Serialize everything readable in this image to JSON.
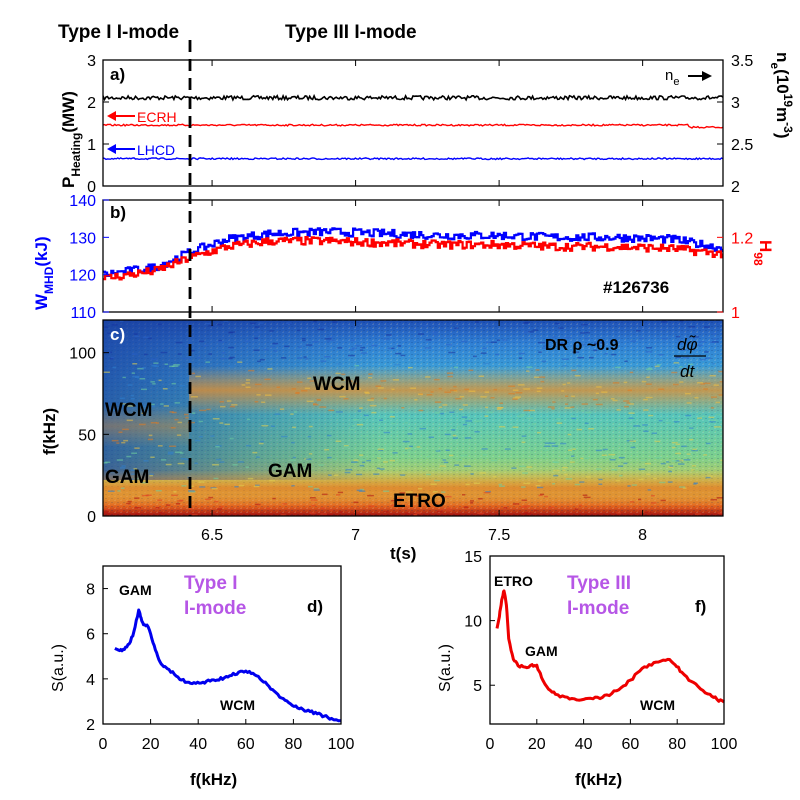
{
  "figure": {
    "top_labels": {
      "left": "Type I I-mode",
      "right": "Type III I-mode"
    },
    "time_axis": {
      "label": "t(s)",
      "ticks": [
        "6.5",
        "7",
        "7.5",
        "8"
      ]
    }
  },
  "chart_data": [
    {
      "id": "a",
      "type": "line",
      "panel_label": "a)",
      "x": {
        "min": 6.12,
        "max": 8.28
      },
      "left_axis": {
        "label_main": "P",
        "label_sub": "Heating",
        "label_unit": "(MW)",
        "ylim": [
          0,
          3
        ],
        "ticks": [
          "0",
          "1",
          "2",
          "3"
        ]
      },
      "right_axis": {
        "label_main": "n",
        "label_sub": "e",
        "label_unit_a": "(10",
        "label_unit_b": "19",
        "label_unit_c": "m",
        "label_unit_d": "-3",
        "label_unit_e": ")",
        "ylim": [
          2,
          3.5
        ],
        "ticks": [
          "2",
          "2.5",
          "3",
          "3.5"
        ]
      },
      "series": [
        {
          "name": "n_e",
          "axis": "right",
          "color": "#000000",
          "value": 3.05,
          "end_value": 3.06
        },
        {
          "name": "ECRH",
          "axis": "left",
          "color": "#ff0000",
          "value": 1.45,
          "drop_at": 8.16,
          "end_value": 1.4
        },
        {
          "name": "LHCD",
          "axis": "left",
          "color": "#0000ff",
          "value": 0.65,
          "end_value": 0.65
        }
      ],
      "annotations": {
        "ecrh": "ECRH",
        "lhcd": "LHCD",
        "ne_main": "n",
        "ne_sub": "e"
      }
    },
    {
      "id": "b",
      "type": "line",
      "panel_label": "b)",
      "x": {
        "min": 6.12,
        "max": 8.28
      },
      "left_axis": {
        "label_main": "W",
        "label_sub": "MHD",
        "label_unit": "(kJ)",
        "ylim": [
          110,
          140
        ],
        "ticks": [
          "110",
          "120",
          "130",
          "140"
        ],
        "color": "#0000ff"
      },
      "right_axis": {
        "label_main": "H",
        "label_sub": "98",
        "ylim": [
          1.0,
          1.3
        ],
        "ticks": [
          "1",
          "1.2"
        ],
        "color": "#ff0000"
      },
      "series": [
        {
          "name": "W_MHD",
          "axis": "left",
          "color": "#0000ff",
          "points": [
            [
              6.12,
              120
            ],
            [
              6.3,
              122
            ],
            [
              6.42,
              126
            ],
            [
              6.55,
              129.5
            ],
            [
              6.7,
              131
            ],
            [
              6.9,
              131.5
            ],
            [
              7.1,
              131
            ],
            [
              7.3,
              130.5
            ],
            [
              7.5,
              130.5
            ],
            [
              7.7,
              130
            ],
            [
              7.9,
              130
            ],
            [
              8.1,
              129.5
            ],
            [
              8.28,
              127
            ]
          ]
        },
        {
          "name": "H98",
          "axis": "right",
          "color": "#ff0000",
          "points": [
            [
              6.12,
              1.09
            ],
            [
              6.3,
              1.11
            ],
            [
              6.42,
              1.145
            ],
            [
              6.55,
              1.175
            ],
            [
              6.7,
              1.19
            ],
            [
              6.9,
              1.19
            ],
            [
              7.1,
              1.185
            ],
            [
              7.3,
              1.18
            ],
            [
              7.5,
              1.18
            ],
            [
              7.7,
              1.175
            ],
            [
              7.9,
              1.175
            ],
            [
              8.1,
              1.17
            ],
            [
              8.28,
              1.155
            ]
          ]
        }
      ],
      "annotations": {
        "shot": "#126736"
      }
    },
    {
      "id": "c",
      "type": "heatmap",
      "panel_label": "c)",
      "x": {
        "min": 6.12,
        "max": 8.28
      },
      "ylabel": "f(kHz)",
      "ylim": [
        0,
        120
      ],
      "yticks": [
        "0",
        "50",
        "100"
      ],
      "annotations": {
        "wcm_left": "WCM",
        "gam_left": "GAM",
        "wcm_right": "WCM",
        "gam_right": "GAM",
        "etro": "ETRO",
        "diag": "DR ρ ~0.9",
        "quantity_num": "dφ̃",
        "quantity_den": "dt"
      }
    },
    {
      "id": "d",
      "type": "line",
      "panel_label": "d)",
      "title_line1": "Type I",
      "title_line2": "I-mode",
      "xlabel": "f(kHz)",
      "ylabel": "S(a.u.)",
      "xlim": [
        0,
        100
      ],
      "ylim": [
        2,
        9
      ],
      "xticks": [
        "0",
        "20",
        "40",
        "60",
        "80",
        "100"
      ],
      "yticks": [
        "2",
        "4",
        "6",
        "8"
      ],
      "series": [
        {
          "name": "Type I spectrum",
          "color": "#0000ee",
          "points": [
            [
              5,
              5.35
            ],
            [
              7,
              5.25
            ],
            [
              9,
              5.3
            ],
            [
              11,
              5.55
            ],
            [
              13,
              6.1
            ],
            [
              15,
              7.05
            ],
            [
              16,
              6.7
            ],
            [
              17,
              6.4
            ],
            [
              19,
              6.3
            ],
            [
              21,
              5.6
            ],
            [
              23,
              5.0
            ],
            [
              25,
              4.6
            ],
            [
              27,
              4.45
            ],
            [
              30,
              4.2
            ],
            [
              33,
              3.95
            ],
            [
              36,
              3.85
            ],
            [
              39,
              3.8
            ],
            [
              42,
              3.85
            ],
            [
              45,
              3.9
            ],
            [
              48,
              3.95
            ],
            [
              51,
              4.05
            ],
            [
              54,
              4.15
            ],
            [
              57,
              4.3
            ],
            [
              60,
              4.35
            ],
            [
              63,
              4.25
            ],
            [
              66,
              4.0
            ],
            [
              69,
              3.75
            ],
            [
              72,
              3.45
            ],
            [
              75,
              3.15
            ],
            [
              78,
              2.95
            ],
            [
              81,
              2.8
            ],
            [
              84,
              2.65
            ],
            [
              87,
              2.55
            ],
            [
              90,
              2.45
            ],
            [
              93,
              2.35
            ],
            [
              96,
              2.25
            ],
            [
              100,
              2.15
            ]
          ]
        }
      ],
      "annotations": {
        "gam": "GAM",
        "wcm": "WCM"
      }
    },
    {
      "id": "f",
      "type": "line",
      "panel_label": "f)",
      "title_line1": "Type III",
      "title_line2": "I-mode",
      "xlabel": "f(kHz)",
      "ylabel": "S(a.u.)",
      "xlim": [
        0,
        100
      ],
      "ylim": [
        2,
        15
      ],
      "xticks": [
        "0",
        "20",
        "40",
        "60",
        "80",
        "100"
      ],
      "yticks": [
        "5",
        "10",
        "15"
      ],
      "series": [
        {
          "name": "Type III spectrum",
          "color": "#ee0000",
          "points": [
            [
              3,
              9.4
            ],
            [
              4,
              10.3
            ],
            [
              5,
              11.6
            ],
            [
              6,
              12.3
            ],
            [
              7,
              11.2
            ],
            [
              8,
              8.6
            ],
            [
              10,
              7.0
            ],
            [
              12,
              6.5
            ],
            [
              15,
              6.4
            ],
            [
              18,
              6.6
            ],
            [
              20,
              6.55
            ],
            [
              22,
              5.6
            ],
            [
              25,
              4.7
            ],
            [
              28,
              4.3
            ],
            [
              32,
              4.1
            ],
            [
              36,
              3.95
            ],
            [
              40,
              3.9
            ],
            [
              44,
              3.95
            ],
            [
              48,
              4.05
            ],
            [
              52,
              4.35
            ],
            [
              56,
              4.8
            ],
            [
              60,
              5.4
            ],
            [
              64,
              6.1
            ],
            [
              68,
              6.6
            ],
            [
              72,
              6.8
            ],
            [
              76,
              7.0
            ],
            [
              79,
              6.6
            ],
            [
              82,
              6.0
            ],
            [
              86,
              5.3
            ],
            [
              90,
              4.7
            ],
            [
              94,
              4.3
            ],
            [
              97,
              3.9
            ],
            [
              100,
              3.7
            ]
          ]
        }
      ],
      "annotations": {
        "etro": "ETRO",
        "gam": "GAM",
        "wcm": "WCM"
      }
    }
  ]
}
